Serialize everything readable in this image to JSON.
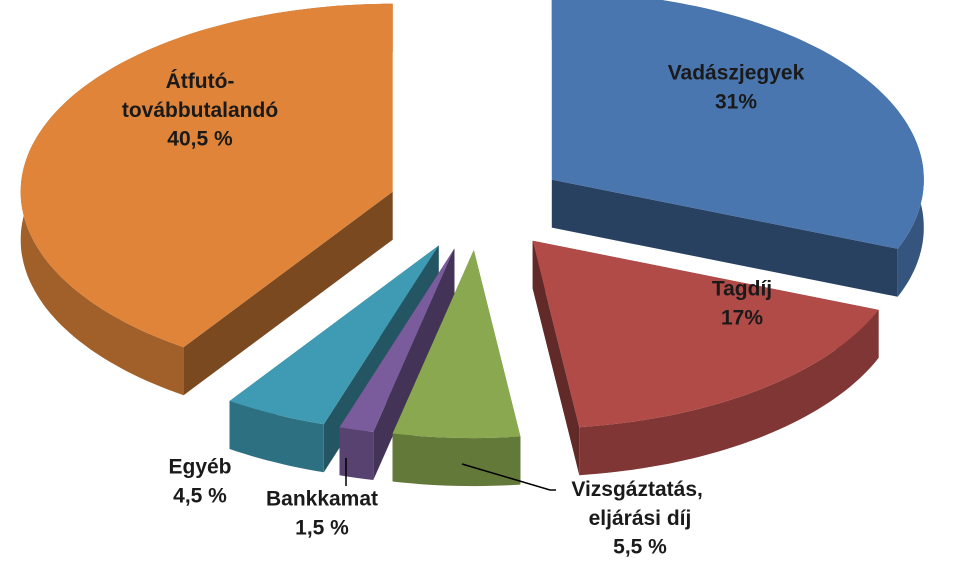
{
  "chart_data": {
    "type": "pie",
    "categories": [
      "Vadászjegyek",
      "Tagdíj",
      "Vizsgáztatás, eljárási díj",
      "Bankkamat",
      "Egyéb",
      "Átfutó-továbbutalandó"
    ],
    "values": [
      31,
      17,
      5.5,
      1.5,
      4.5,
      40.5
    ],
    "value_labels": [
      "31%",
      "17%",
      "5,5 %",
      "1,5 %",
      "4,5 %",
      "40,5 %"
    ],
    "colors": [
      "#4a76b0",
      "#b14b48",
      "#8aa84f",
      "#7a5c9c",
      "#3f9bb3",
      "#e0843a"
    ]
  }
}
